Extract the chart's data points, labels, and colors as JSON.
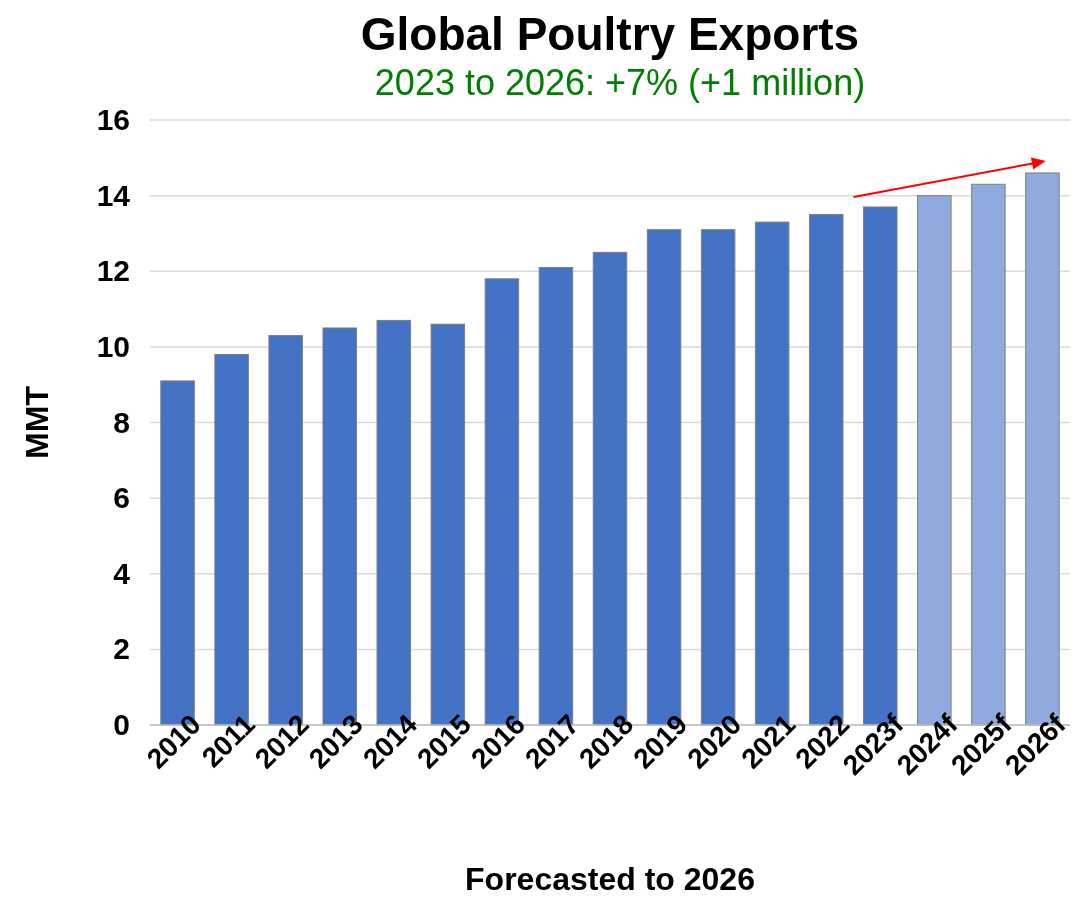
{
  "chart_data": {
    "type": "bar",
    "title": "Global Poultry Exports",
    "xlabel": "Forecasted to 2026",
    "ylabel": "MMT",
    "categories": [
      "2010",
      "2011",
      "2012",
      "2013",
      "2014",
      "2015",
      "2016",
      "2017",
      "2018",
      "2019",
      "2020",
      "2021",
      "2022",
      "2023f",
      "2024f",
      "2025f",
      "2026f"
    ],
    "values": [
      9.1,
      9.8,
      10.3,
      10.5,
      10.7,
      10.6,
      11.8,
      12.1,
      12.5,
      13.1,
      13.1,
      13.3,
      13.5,
      13.7,
      14.0,
      14.3,
      14.6
    ],
    "colors": [
      "#4472c4",
      "#4472c4",
      "#4472c4",
      "#4472c4",
      "#4472c4",
      "#4472c4",
      "#4472c4",
      "#4472c4",
      "#4472c4",
      "#4472c4",
      "#4472c4",
      "#4472c4",
      "#4472c4",
      "#4472c4",
      "#8faadc",
      "#8faadc",
      "#8faadc"
    ],
    "ylim": [
      0,
      16
    ],
    "yticks": [
      0,
      2,
      4,
      6,
      8,
      10,
      12,
      14,
      16
    ],
    "grid": "y",
    "annotations": [
      "2023 to 2026: +7% (+1 million)"
    ]
  }
}
